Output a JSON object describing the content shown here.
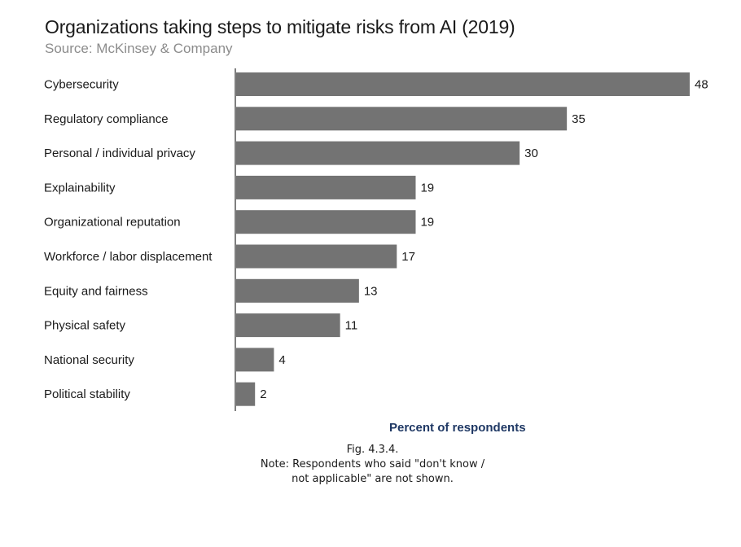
{
  "chart_data": {
    "type": "bar",
    "orientation": "horizontal",
    "title": "Organizations taking steps to mitigate risks from AI (2019)",
    "subtitle": "Source: McKinsey & Company",
    "xlabel": "Percent of respondents",
    "ylabel": "",
    "xlim": [
      0,
      48
    ],
    "categories": [
      "Cybersecurity",
      "Regulatory compliance",
      "Personal / individual privacy",
      "Explainability",
      "Organizational reputation",
      "Workforce / labor displacement",
      "Equity and fairness",
      "Physical safety",
      "National security",
      "Political stability"
    ],
    "values": [
      48,
      35,
      30,
      19,
      19,
      17,
      13,
      11,
      4,
      2
    ],
    "bar_color": "#737373",
    "grid": false,
    "legend": "none"
  },
  "caption": {
    "fig": "Fig. 4.3.4.",
    "note_line1": "Note: Respondents who said \"don't know /",
    "note_line2": "not applicable\" are not shown."
  }
}
